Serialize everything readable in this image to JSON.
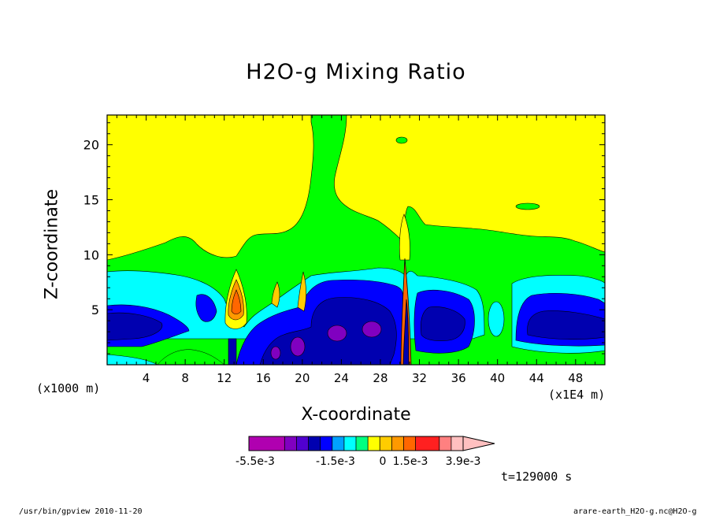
{
  "chart_data": {
    "type": "heatmap",
    "title": "H2O-g Mixing Ratio",
    "xlabel": "X-coordinate",
    "ylabel": "Z-coordinate",
    "x_unit_left": "(x1000 m)",
    "x_unit_right": "(x1E4 m)",
    "x_ticks": [
      "4",
      "8",
      "12",
      "16",
      "20",
      "24",
      "28",
      "32",
      "36",
      "40",
      "44",
      "48"
    ],
    "y_ticks": [
      "5",
      "10",
      "15",
      "20"
    ],
    "xlim": [
      0,
      51
    ],
    "ylim": [
      0,
      22.7
    ],
    "colorbar": {
      "colors": [
        "#b000b0",
        "#b000b0",
        "#b000b0",
        "#8000c0",
        "#5000d0",
        "#0000b0",
        "#0000ff",
        "#00a0ff",
        "#00ffff",
        "#00ff80",
        "#ffff00",
        "#ffcc00",
        "#ff9900",
        "#ff6600",
        "#ff2020",
        "#ff2020",
        "#ff8080",
        "#ffc0c0"
      ],
      "labels": [
        "-5.5e-3",
        "-1.5e-3",
        "0",
        "1.5e-3",
        "3.9e-3"
      ]
    },
    "palette": {
      "yellow": "#ffff00",
      "green": "#00ff00",
      "cyan": "#00ffff",
      "blue": "#0000ff",
      "navy": "#0000b0",
      "purple": "#8000c0",
      "magenta": "#b000b0",
      "orange": "#ff9900",
      "red": "#ff2020",
      "gold": "#ffcc00"
    },
    "time_label": "t=129000 s"
  },
  "footer": {
    "left": "/usr/bin/gpview   2010-11-20",
    "right": "arare-earth_H2O-g.nc@H2O-g"
  }
}
